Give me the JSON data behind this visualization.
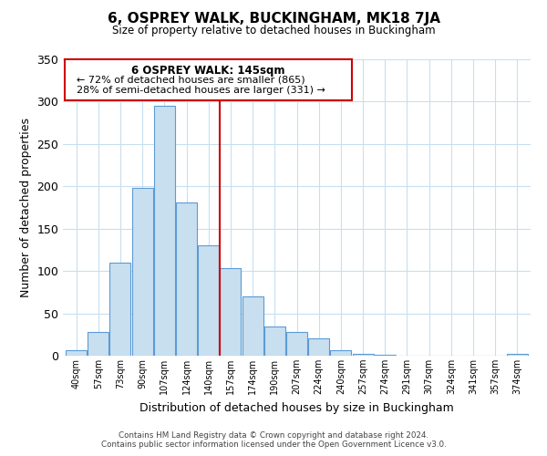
{
  "title": "6, OSPREY WALK, BUCKINGHAM, MK18 7JA",
  "subtitle": "Size of property relative to detached houses in Buckingham",
  "xlabel": "Distribution of detached houses by size in Buckingham",
  "ylabel": "Number of detached properties",
  "bar_labels": [
    "40sqm",
    "57sqm",
    "73sqm",
    "90sqm",
    "107sqm",
    "124sqm",
    "140sqm",
    "157sqm",
    "174sqm",
    "190sqm",
    "207sqm",
    "224sqm",
    "240sqm",
    "257sqm",
    "274sqm",
    "291sqm",
    "307sqm",
    "324sqm",
    "341sqm",
    "357sqm",
    "374sqm"
  ],
  "bar_values": [
    7,
    28,
    110,
    198,
    295,
    181,
    130,
    103,
    70,
    35,
    28,
    20,
    6,
    2,
    1,
    0,
    0,
    0,
    0,
    0,
    2
  ],
  "bar_color": "#c8dff0",
  "bar_edge_color": "#5b9bd5",
  "vline_color": "#cc0000",
  "annotation_title": "6 OSPREY WALK: 145sqm",
  "annotation_line1": "← 72% of detached houses are smaller (865)",
  "annotation_line2": "28% of semi-detached houses are larger (331) →",
  "annotation_box_edge": "#cc0000",
  "ylim": [
    0,
    350
  ],
  "yticks": [
    0,
    50,
    100,
    150,
    200,
    250,
    300,
    350
  ],
  "footer_line1": "Contains HM Land Registry data © Crown copyright and database right 2024.",
  "footer_line2": "Contains public sector information licensed under the Open Government Licence v3.0.",
  "bg_color": "#ffffff",
  "grid_color": "#c8dff0"
}
